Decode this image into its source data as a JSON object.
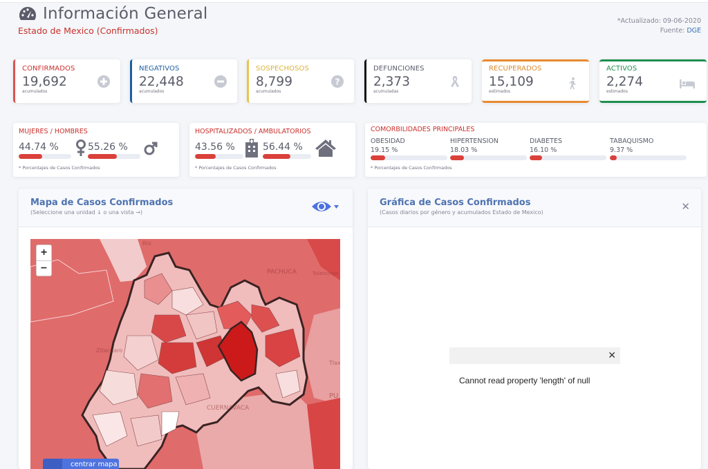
{
  "header": {
    "title": "Información General",
    "subtitle": "Estado de Mexico (Confirmados)",
    "updated": "*Actualizado: 09-06-2020",
    "source_label": "Fuente: ",
    "source_link": "DGE"
  },
  "stats": [
    {
      "label": "CONFIRMADOS",
      "value": "19,692",
      "note": "acumulados",
      "icon": "plus-circle-icon",
      "color": "#d9534f"
    },
    {
      "label": "NEGATIVOS",
      "value": "22,448",
      "note": "acumulados",
      "icon": "minus-circle-icon",
      "color": "#1f5f9e"
    },
    {
      "label": "SOSPECHOSOS",
      "value": "8,799",
      "note": "acumulados",
      "icon": "question-circle-icon",
      "color": "#e8c547"
    },
    {
      "label": "DEFUNCIONES",
      "value": "2,373",
      "note": "acumuladas",
      "icon": "ribbon-icon",
      "color": "#111111"
    },
    {
      "label": "RECUPERADOS",
      "value": "15,109",
      "note": "estimados",
      "icon": "walking-icon",
      "color": "#e8892f"
    },
    {
      "label": "ACTIVOS",
      "value": "2,274",
      "note": "estimados",
      "icon": "bed-icon",
      "color": "#1e8e4e"
    }
  ],
  "gender": {
    "label": "MUJERES / HOMBRES",
    "women_pct_text": "44.74 %",
    "women_pct": 44.74,
    "men_pct_text": "55.26 %",
    "men_pct": 55.26,
    "footnote": "* Porcentajes  de Casos Confirmados"
  },
  "hospital": {
    "label": "HOSPITALIZADOS / AMBULATORIOS",
    "hosp_pct_text": "43.56 %",
    "hosp_pct": 43.56,
    "amb_pct_text": "56.44 %",
    "amb_pct": 56.44,
    "footnote": "* Porcentajes  de Casos Confirmados"
  },
  "comorbidities": {
    "label": "COMORBILIDADES PRINCIPALES",
    "items": [
      {
        "name": "OBESIDAD",
        "pct_text": "19.15 %",
        "pct": 19.15
      },
      {
        "name": "HIPERTENSION",
        "pct_text": "18.03 %",
        "pct": 18.03
      },
      {
        "name": "DIABETES",
        "pct_text": "16.10 %",
        "pct": 16.1
      },
      {
        "name": "TABAQUISMO",
        "pct_text": "9.37 %",
        "pct": 9.37
      }
    ],
    "footnote": "* Porcentajes  de Casos Confirmados"
  },
  "map_panel": {
    "title": "Mapa de Casos Confirmados",
    "subtitle": "(Seleccione una unidad ↓ o una vista →)",
    "zoom_in": "+",
    "zoom_out": "−",
    "center_button": "centrar mapa",
    "labels": [
      "Rio",
      "PACHUCA",
      "Tulancingo",
      "Zitacuaro",
      "CUERNAVACA",
      "Tlaxc",
      "PU"
    ]
  },
  "chart_panel": {
    "title": "Gráfica de Casos Confirmados",
    "subtitle": "(Casos diarios por género y acumulados Estado de Mexico)",
    "close": "✕",
    "error_close": "✕",
    "error_message": "Cannot read property 'length' of null"
  }
}
